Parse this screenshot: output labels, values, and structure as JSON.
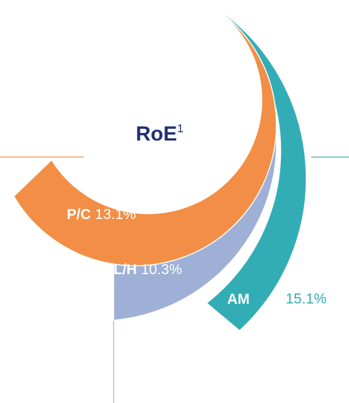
{
  "chart_data": {
    "type": "radial_bar",
    "title": "RoE",
    "title_superscript": "1",
    "categories": [
      "P/C",
      "L/H",
      "AM"
    ],
    "values": [
      13.1,
      10.3,
      15.1
    ],
    "value_labels": [
      "13.1%",
      "10.3%",
      "15.1%"
    ],
    "colors": [
      "#f28e45",
      "#9eb0d6",
      "#33adb5"
    ],
    "title_color": "#1f2f7a"
  }
}
